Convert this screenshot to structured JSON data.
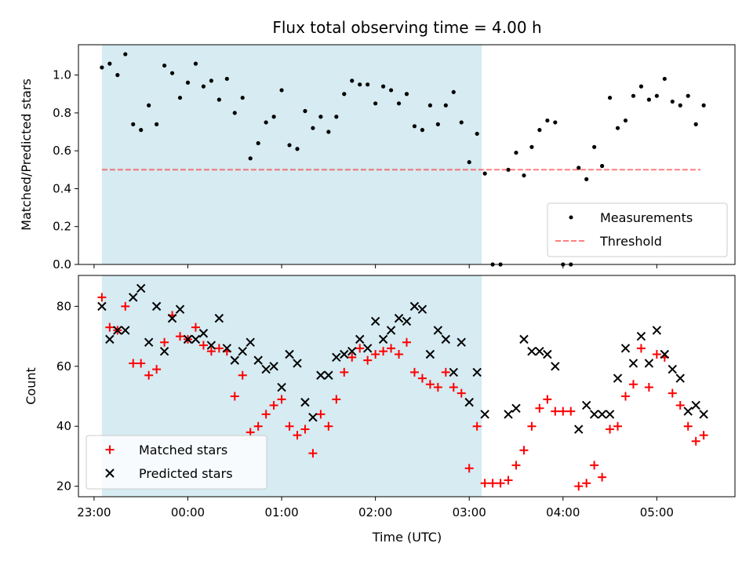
{
  "title": "Flux total observing time = 4.00 h",
  "colors": {
    "shade": "#add8e6",
    "threshold": "#ff0000",
    "matched": "#ff0000",
    "predicted": "#000000",
    "measurements": "#000000"
  },
  "chart_data": [
    {
      "type": "scatter",
      "panel": "top",
      "ylabel": "Matched/Predicted stars",
      "ylim": [
        0,
        1.16
      ],
      "yticks": [
        0.0,
        0.2,
        0.4,
        0.6,
        0.8,
        1.0
      ],
      "ytick_labels": [
        "0.0",
        "0.2",
        "0.4",
        "0.6",
        "0.8",
        "1.0"
      ],
      "shaded_span": [
        "23:05",
        "03:08"
      ],
      "legend": {
        "placement": "lower right",
        "entries": [
          "Measurements",
          "Threshold"
        ]
      },
      "threshold": {
        "name": "Threshold",
        "value": 0.5,
        "x_range": [
          "23:05",
          "05:28"
        ],
        "style": "dashed"
      },
      "series": [
        {
          "name": "Measurements",
          "marker": "dot",
          "points": [
            [
              "23:05",
              1.04
            ],
            [
              "23:10",
              1.06
            ],
            [
              "23:15",
              1.0
            ],
            [
              "23:20",
              1.11
            ],
            [
              "23:25",
              0.74
            ],
            [
              "23:30",
              0.71
            ],
            [
              "23:35",
              0.84
            ],
            [
              "23:40",
              0.74
            ],
            [
              "23:45",
              1.05
            ],
            [
              "23:50",
              1.01
            ],
            [
              "23:55",
              0.88
            ],
            [
              "00:00",
              0.96
            ],
            [
              "00:05",
              1.06
            ],
            [
              "00:10",
              0.94
            ],
            [
              "00:15",
              0.97
            ],
            [
              "00:20",
              0.87
            ],
            [
              "00:25",
              0.98
            ],
            [
              "00:30",
              0.8
            ],
            [
              "00:35",
              0.88
            ],
            [
              "00:40",
              0.56
            ],
            [
              "00:45",
              0.64
            ],
            [
              "00:50",
              0.75
            ],
            [
              "00:55",
              0.78
            ],
            [
              "01:00",
              0.92
            ],
            [
              "01:05",
              0.63
            ],
            [
              "01:10",
              0.61
            ],
            [
              "01:15",
              0.81
            ],
            [
              "01:20",
              0.72
            ],
            [
              "01:25",
              0.78
            ],
            [
              "01:30",
              0.7
            ],
            [
              "01:35",
              0.78
            ],
            [
              "01:40",
              0.9
            ],
            [
              "01:45",
              0.97
            ],
            [
              "01:50",
              0.95
            ],
            [
              "01:55",
              0.95
            ],
            [
              "02:00",
              0.85
            ],
            [
              "02:05",
              0.94
            ],
            [
              "02:10",
              0.92
            ],
            [
              "02:15",
              0.85
            ],
            [
              "02:20",
              0.9
            ],
            [
              "02:25",
              0.73
            ],
            [
              "02:30",
              0.71
            ],
            [
              "02:35",
              0.84
            ],
            [
              "02:40",
              0.74
            ],
            [
              "02:45",
              0.84
            ],
            [
              "02:50",
              0.91
            ],
            [
              "02:55",
              0.75
            ],
            [
              "03:00",
              0.54
            ],
            [
              "03:05",
              0.69
            ],
            [
              "03:10",
              0.48
            ],
            [
              "03:15",
              0.0
            ],
            [
              "03:20",
              0.0
            ],
            [
              "03:25",
              0.5
            ],
            [
              "03:30",
              0.59
            ],
            [
              "03:35",
              0.47
            ],
            [
              "03:40",
              0.62
            ],
            [
              "03:45",
              0.71
            ],
            [
              "03:50",
              0.76
            ],
            [
              "03:55",
              0.75
            ],
            [
              "04:00",
              0.0
            ],
            [
              "04:05",
              0.0
            ],
            [
              "04:10",
              0.51
            ],
            [
              "04:15",
              0.45
            ],
            [
              "04:20",
              0.62
            ],
            [
              "04:25",
              0.52
            ],
            [
              "04:30",
              0.88
            ],
            [
              "04:35",
              0.72
            ],
            [
              "04:40",
              0.76
            ],
            [
              "04:45",
              0.89
            ],
            [
              "04:50",
              0.94
            ],
            [
              "04:55",
              0.87
            ],
            [
              "05:00",
              0.89
            ],
            [
              "05:05",
              0.98
            ],
            [
              "05:10",
              0.86
            ],
            [
              "05:15",
              0.84
            ],
            [
              "05:20",
              0.89
            ],
            [
              "05:25",
              0.74
            ],
            [
              "05:30",
              0.84
            ]
          ]
        }
      ]
    },
    {
      "type": "scatter",
      "panel": "bottom",
      "xlabel": "Time (UTC)",
      "ylabel": "Count",
      "ylim": [
        16.5,
        90.3
      ],
      "yticks": [
        20,
        40,
        60,
        80
      ],
      "ytick_labels": [
        "20",
        "40",
        "60",
        "80"
      ],
      "xlim": [
        "22:50",
        "05:50"
      ],
      "xticks": [
        "23:00",
        "00:00",
        "01:00",
        "02:00",
        "03:00",
        "04:00",
        "05:00"
      ],
      "xtick_labels": [
        "23:00",
        "00:00",
        "01:00",
        "02:00",
        "03:00",
        "04:00",
        "05:00"
      ],
      "shaded_span": [
        "23:05",
        "03:08"
      ],
      "legend": {
        "placement": "lower left",
        "entries": [
          "Matched stars",
          "Predicted stars"
        ]
      },
      "series": [
        {
          "name": "Matched stars",
          "marker": "plus",
          "points": [
            [
              "23:05",
              83
            ],
            [
              "23:10",
              73
            ],
            [
              "23:15",
              72
            ],
            [
              "23:20",
              80
            ],
            [
              "23:25",
              61
            ],
            [
              "23:30",
              61
            ],
            [
              "23:35",
              57
            ],
            [
              "23:40",
              59
            ],
            [
              "23:45",
              68
            ],
            [
              "23:50",
              77
            ],
            [
              "23:55",
              70
            ],
            [
              "00:00",
              69
            ],
            [
              "00:05",
              73
            ],
            [
              "00:10",
              67
            ],
            [
              "00:15",
              65
            ],
            [
              "00:20",
              66
            ],
            [
              "00:25",
              65
            ],
            [
              "00:30",
              50
            ],
            [
              "00:35",
              57
            ],
            [
              "00:40",
              38
            ],
            [
              "00:45",
              40
            ],
            [
              "00:50",
              44
            ],
            [
              "00:55",
              47
            ],
            [
              "01:00",
              49
            ],
            [
              "01:05",
              40
            ],
            [
              "01:10",
              37
            ],
            [
              "01:15",
              39
            ],
            [
              "01:20",
              31
            ],
            [
              "01:25",
              44
            ],
            [
              "01:30",
              40
            ],
            [
              "01:35",
              49
            ],
            [
              "01:40",
              58
            ],
            [
              "01:45",
              63
            ],
            [
              "01:50",
              66
            ],
            [
              "01:55",
              62
            ],
            [
              "02:00",
              64
            ],
            [
              "02:05",
              65
            ],
            [
              "02:10",
              66
            ],
            [
              "02:15",
              64
            ],
            [
              "02:20",
              68
            ],
            [
              "02:25",
              58
            ],
            [
              "02:30",
              56
            ],
            [
              "02:35",
              54
            ],
            [
              "02:40",
              53
            ],
            [
              "02:45",
              58
            ],
            [
              "02:50",
              53
            ],
            [
              "02:55",
              51
            ],
            [
              "03:00",
              26
            ],
            [
              "03:05",
              40
            ],
            [
              "03:10",
              21
            ],
            [
              "03:15",
              21
            ],
            [
              "03:20",
              21
            ],
            [
              "03:25",
              22
            ],
            [
              "03:30",
              27
            ],
            [
              "03:35",
              32
            ],
            [
              "03:40",
              40
            ],
            [
              "03:45",
              46
            ],
            [
              "03:50",
              49
            ],
            [
              "03:55",
              45
            ],
            [
              "04:00",
              45
            ],
            [
              "04:05",
              45
            ],
            [
              "04:10",
              20
            ],
            [
              "04:15",
              21
            ],
            [
              "04:20",
              27
            ],
            [
              "04:25",
              23
            ],
            [
              "04:30",
              39
            ],
            [
              "04:35",
              40
            ],
            [
              "04:40",
              50
            ],
            [
              "04:45",
              54
            ],
            [
              "04:50",
              66
            ],
            [
              "04:55",
              53
            ],
            [
              "05:00",
              64
            ],
            [
              "05:05",
              63
            ],
            [
              "05:10",
              51
            ],
            [
              "05:15",
              47
            ],
            [
              "05:20",
              40
            ],
            [
              "05:25",
              35
            ],
            [
              "05:30",
              37
            ]
          ]
        },
        {
          "name": "Predicted stars",
          "marker": "x",
          "points": [
            [
              "23:05",
              80
            ],
            [
              "23:10",
              69
            ],
            [
              "23:15",
              72
            ],
            [
              "23:20",
              72
            ],
            [
              "23:25",
              83
            ],
            [
              "23:30",
              86
            ],
            [
              "23:35",
              68
            ],
            [
              "23:40",
              80
            ],
            [
              "23:45",
              65
            ],
            [
              "23:50",
              76
            ],
            [
              "23:55",
              79
            ],
            [
              "00:00",
              69
            ],
            [
              "00:05",
              69
            ],
            [
              "00:10",
              71
            ],
            [
              "00:15",
              67
            ],
            [
              "00:20",
              76
            ],
            [
              "00:25",
              66
            ],
            [
              "00:30",
              62
            ],
            [
              "00:35",
              65
            ],
            [
              "00:40",
              68
            ],
            [
              "00:45",
              62
            ],
            [
              "00:50",
              59
            ],
            [
              "00:55",
              60
            ],
            [
              "01:00",
              53
            ],
            [
              "01:05",
              64
            ],
            [
              "01:10",
              61
            ],
            [
              "01:15",
              48
            ],
            [
              "01:20",
              43
            ],
            [
              "01:25",
              57
            ],
            [
              "01:30",
              57
            ],
            [
              "01:35",
              63
            ],
            [
              "01:40",
              64
            ],
            [
              "01:45",
              65
            ],
            [
              "01:50",
              69
            ],
            [
              "01:55",
              66
            ],
            [
              "02:00",
              75
            ],
            [
              "02:05",
              69
            ],
            [
              "02:10",
              72
            ],
            [
              "02:15",
              76
            ],
            [
              "02:20",
              75
            ],
            [
              "02:25",
              80
            ],
            [
              "02:30",
              79
            ],
            [
              "02:35",
              64
            ],
            [
              "02:40",
              72
            ],
            [
              "02:45",
              69
            ],
            [
              "02:50",
              58
            ],
            [
              "02:55",
              68
            ],
            [
              "03:00",
              48
            ],
            [
              "03:05",
              58
            ],
            [
              "03:10",
              44
            ],
            [
              "03:25",
              44
            ],
            [
              "03:30",
              46
            ],
            [
              "03:35",
              69
            ],
            [
              "03:40",
              65
            ],
            [
              "03:45",
              65
            ],
            [
              "03:50",
              64
            ],
            [
              "03:55",
              60
            ],
            [
              "04:10",
              39
            ],
            [
              "04:15",
              47
            ],
            [
              "04:20",
              44
            ],
            [
              "04:25",
              44
            ],
            [
              "04:30",
              44
            ],
            [
              "04:35",
              56
            ],
            [
              "04:40",
              66
            ],
            [
              "04:45",
              61
            ],
            [
              "04:50",
              70
            ],
            [
              "04:55",
              61
            ],
            [
              "05:00",
              72
            ],
            [
              "05:05",
              64
            ],
            [
              "05:10",
              59
            ],
            [
              "05:15",
              56
            ],
            [
              "05:20",
              45
            ],
            [
              "05:25",
              47
            ],
            [
              "05:30",
              44
            ]
          ]
        }
      ]
    }
  ]
}
